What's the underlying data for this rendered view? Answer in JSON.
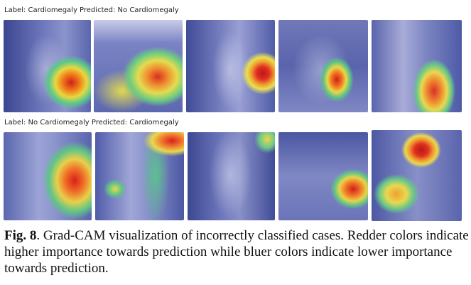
{
  "rows": [
    {
      "label": "Label: Cardiomegaly Predicted: No Cardiomegaly"
    },
    {
      "label": "Label: No Cardiomegaly Predicted: Cardiomegaly"
    }
  ],
  "caption": {
    "label": "Fig. 8",
    "text": ". Grad-CAM visualization of incorrectly classified cases. Redder colors indicate higher importance towards prediction while bluer colors indicate lower importance towards prediction."
  }
}
